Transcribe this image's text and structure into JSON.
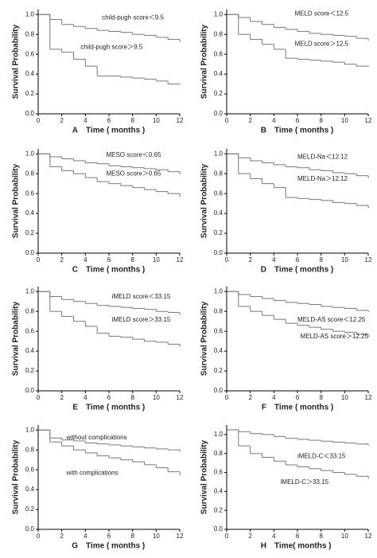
{
  "chart_data": [
    {
      "type": "step",
      "panel_label": "A",
      "xlabel": "Time ( months )",
      "ylabel": "Survival Probability",
      "x": [
        0,
        1,
        2,
        3,
        4,
        5,
        6,
        7,
        8,
        9,
        10,
        11,
        12
      ],
      "xlim": [
        0,
        12
      ],
      "ylim": [
        0,
        1.05
      ],
      "xticks": [
        0,
        2,
        4,
        6,
        8,
        10,
        12
      ],
      "yticks": [
        {
          "value": 0,
          "label": "0.0"
        },
        {
          "value": 0.2,
          "label": "0.2"
        },
        {
          "value": 0.4,
          "label": "0.4"
        },
        {
          "value": 0.6,
          "label": "0.6"
        },
        {
          "value": 0.8,
          "label": "0.8"
        },
        {
          "value": 1,
          "label": "1.0"
        }
      ],
      "series": [
        {
          "name": "child-pugh score＜9.5",
          "color": "#777777",
          "values": [
            1,
            0.95,
            0.9,
            0.88,
            0.86,
            0.84,
            0.83,
            0.82,
            0.8,
            0.79,
            0.77,
            0.75,
            0.73
          ]
        },
        {
          "name": "child-pugh score＞9.5",
          "color": "#777777",
          "values": [
            1,
            0.65,
            0.62,
            0.55,
            0.48,
            0.38,
            0.38,
            0.37,
            0.36,
            0.35,
            0.33,
            0.3,
            0.3
          ]
        }
      ]
    },
    {
      "type": "step",
      "panel_label": "B",
      "xlabel": "Time ( months )",
      "ylabel": "Survival Probability",
      "x": [
        0,
        1,
        2,
        3,
        4,
        5,
        6,
        7,
        8,
        9,
        10,
        11,
        12
      ],
      "xlim": [
        0,
        12
      ],
      "ylim": [
        0,
        1.05
      ],
      "xticks": [
        0,
        2,
        4,
        6,
        8,
        10,
        12
      ],
      "yticks": [
        {
          "value": 0,
          "label": "0.0"
        },
        {
          "value": 0.2,
          "label": "0.2"
        },
        {
          "value": 0.4,
          "label": "0.4"
        },
        {
          "value": 0.6,
          "label": "0.6"
        },
        {
          "value": 0.8,
          "label": "0.8"
        },
        {
          "value": 1,
          "label": "1.0"
        }
      ],
      "series": [
        {
          "name": "MELD score＜12.5",
          "color": "#777777",
          "values": [
            1,
            0.97,
            0.93,
            0.9,
            0.87,
            0.85,
            0.83,
            0.81,
            0.8,
            0.79,
            0.78,
            0.76,
            0.74
          ]
        },
        {
          "name": "MELD score＞12.5",
          "color": "#777777",
          "values": [
            1,
            0.8,
            0.75,
            0.7,
            0.65,
            0.56,
            0.55,
            0.54,
            0.53,
            0.52,
            0.5,
            0.48,
            0.48
          ]
        }
      ]
    },
    {
      "type": "step",
      "panel_label": "C",
      "xlabel": "Time ( months )",
      "ylabel": "Survival Probability",
      "x": [
        0,
        1,
        2,
        3,
        4,
        5,
        6,
        7,
        8,
        9,
        10,
        11,
        12
      ],
      "xlim": [
        0,
        12
      ],
      "ylim": [
        0,
        1.05
      ],
      "xticks": [
        0,
        2,
        4,
        6,
        8,
        10,
        12
      ],
      "yticks": [
        {
          "value": 0,
          "label": "0.0"
        },
        {
          "value": 0.2,
          "label": "0.2"
        },
        {
          "value": 0.4,
          "label": "0.4"
        },
        {
          "value": 0.6,
          "label": "0.6"
        },
        {
          "value": 0.8,
          "label": "0.8"
        },
        {
          "value": 1,
          "label": "1.0"
        }
      ],
      "series": [
        {
          "name": "MESO score＜0.65",
          "color": "#777777",
          "values": [
            1,
            0.97,
            0.95,
            0.93,
            0.91,
            0.9,
            0.88,
            0.87,
            0.86,
            0.85,
            0.84,
            0.82,
            0.8
          ]
        },
        {
          "name": "MESO score＞0.65",
          "color": "#777777",
          "values": [
            1,
            0.87,
            0.83,
            0.8,
            0.76,
            0.72,
            0.7,
            0.68,
            0.66,
            0.64,
            0.62,
            0.6,
            0.57
          ]
        }
      ]
    },
    {
      "type": "step",
      "panel_label": "D",
      "xlabel": "Time ( months )",
      "ylabel": "Survival Probability",
      "x": [
        0,
        1,
        2,
        3,
        4,
        5,
        6,
        7,
        8,
        9,
        10,
        11,
        12
      ],
      "xlim": [
        0,
        12
      ],
      "ylim": [
        0,
        1.05
      ],
      "xticks": [
        0,
        2,
        4,
        6,
        8,
        10,
        12
      ],
      "yticks": [
        {
          "value": 0,
          "label": "0.0"
        },
        {
          "value": 0.2,
          "label": "0.2"
        },
        {
          "value": 0.4,
          "label": "0.4"
        },
        {
          "value": 0.6,
          "label": "0.6"
        },
        {
          "value": 0.8,
          "label": "0.8"
        },
        {
          "value": 1,
          "label": "1.0"
        }
      ],
      "series": [
        {
          "name": "MELD-Na＜12.12",
          "color": "#777777",
          "values": [
            1,
            0.96,
            0.93,
            0.91,
            0.89,
            0.87,
            0.86,
            0.84,
            0.83,
            0.81,
            0.8,
            0.78,
            0.76
          ]
        },
        {
          "name": "MELD-Na＞12.12",
          "color": "#777777",
          "values": [
            1,
            0.8,
            0.75,
            0.7,
            0.66,
            0.56,
            0.55,
            0.54,
            0.53,
            0.51,
            0.5,
            0.48,
            0.46
          ]
        }
      ]
    },
    {
      "type": "step",
      "panel_label": "E",
      "xlabel": "Time ( months )",
      "ylabel": "Survival Probability",
      "x": [
        0,
        1,
        2,
        3,
        4,
        5,
        6,
        7,
        8,
        9,
        10,
        11,
        12
      ],
      "xlim": [
        0,
        12
      ],
      "ylim": [
        0,
        1.05
      ],
      "xticks": [
        0,
        2,
        4,
        6,
        8,
        10,
        12
      ],
      "yticks": [
        {
          "value": 0,
          "label": "0.0"
        },
        {
          "value": 0.2,
          "label": "0.2"
        },
        {
          "value": 0.4,
          "label": "0.4"
        },
        {
          "value": 0.6,
          "label": "0.6"
        },
        {
          "value": 0.8,
          "label": "0.8"
        },
        {
          "value": 1,
          "label": "1.0"
        }
      ],
      "series": [
        {
          "name": "iMELD score＜33.15",
          "color": "#777777",
          "values": [
            1,
            0.95,
            0.92,
            0.9,
            0.88,
            0.86,
            0.85,
            0.84,
            0.83,
            0.82,
            0.8,
            0.79,
            0.77
          ]
        },
        {
          "name": "iMELD score＞33.15",
          "color": "#777777",
          "values": [
            1,
            0.8,
            0.75,
            0.7,
            0.65,
            0.58,
            0.55,
            0.54,
            0.52,
            0.5,
            0.49,
            0.47,
            0.45
          ]
        }
      ]
    },
    {
      "type": "step",
      "panel_label": "F",
      "xlabel": "Time ( months )",
      "ylabel": "Survival Probability",
      "x": [
        0,
        1,
        2,
        3,
        4,
        5,
        6,
        7,
        8,
        9,
        10,
        11,
        12
      ],
      "xlim": [
        0,
        12
      ],
      "ylim": [
        0,
        1.05
      ],
      "xticks": [
        0,
        2,
        4,
        6,
        8,
        10,
        12
      ],
      "yticks": [
        {
          "value": 0,
          "label": "0.0"
        },
        {
          "value": 0.2,
          "label": "0.2"
        },
        {
          "value": 0.4,
          "label": "0.4"
        },
        {
          "value": 0.6,
          "label": "0.6"
        },
        {
          "value": 0.8,
          "label": "0.8"
        },
        {
          "value": 1,
          "label": "1.0"
        }
      ],
      "series": [
        {
          "name": "MELD-AS score＜12.25",
          "color": "#777777",
          "values": [
            1,
            0.97,
            0.95,
            0.93,
            0.91,
            0.89,
            0.88,
            0.87,
            0.85,
            0.84,
            0.83,
            0.81,
            0.8
          ]
        },
        {
          "name": "MELD-AS score＞12.25",
          "color": "#777777",
          "values": [
            1,
            0.85,
            0.8,
            0.76,
            0.72,
            0.68,
            0.66,
            0.64,
            0.62,
            0.6,
            0.59,
            0.57,
            0.55
          ]
        }
      ]
    },
    {
      "type": "step",
      "panel_label": "G",
      "xlabel": "Time ( months )",
      "ylabel": "Survival Probability",
      "x": [
        0,
        1,
        2,
        3,
        4,
        5,
        6,
        7,
        8,
        9,
        10,
        11,
        12
      ],
      "xlim": [
        0,
        12
      ],
      "ylim": [
        0,
        1.05
      ],
      "xticks": [
        0,
        2,
        4,
        6,
        8,
        10,
        12
      ],
      "yticks": [
        {
          "value": 0,
          "label": "0.0"
        },
        {
          "value": 0.2,
          "label": "0.2"
        },
        {
          "value": 0.4,
          "label": "0.4"
        },
        {
          "value": 0.6,
          "label": "0.6"
        },
        {
          "value": 0.8,
          "label": "0.8"
        },
        {
          "value": 1,
          "label": "1.0"
        }
      ],
      "series": [
        {
          "name": "without complications",
          "color": "#777777",
          "values": [
            1,
            0.92,
            0.9,
            0.89,
            0.87,
            0.86,
            0.85,
            0.84,
            0.83,
            0.82,
            0.81,
            0.8,
            0.79
          ]
        },
        {
          "name": "with complications",
          "color": "#777777",
          "values": [
            1,
            0.88,
            0.84,
            0.8,
            0.77,
            0.74,
            0.72,
            0.7,
            0.68,
            0.65,
            0.62,
            0.58,
            0.55
          ]
        }
      ]
    },
    {
      "type": "step",
      "panel_label": "H",
      "xlabel": "Time( months )",
      "ylabel": "Survival Probability",
      "x": [
        0,
        1,
        2,
        3,
        4,
        5,
        6,
        7,
        8,
        9,
        10,
        11,
        12
      ],
      "xlim": [
        0,
        12
      ],
      "ylim": [
        0,
        1.1
      ],
      "xticks": [
        0,
        2,
        4,
        6,
        8,
        10,
        12
      ],
      "yticks": [
        {
          "value": 0,
          "label": "0.0"
        },
        {
          "value": 0.2,
          "label": "0.2"
        },
        {
          "value": 0.4,
          "label": "0.4"
        },
        {
          "value": 0.6,
          "label": "0.6"
        },
        {
          "value": 0.8,
          "label": "0.8"
        },
        {
          "value": 1,
          "label": "1.0"
        }
      ],
      "series": [
        {
          "name": "iMELD-C＜33.15",
          "color": "#777777",
          "values": [
            1.05,
            1.03,
            1.01,
            1,
            0.98,
            0.96,
            0.95,
            0.94,
            0.93,
            0.92,
            0.91,
            0.9,
            0.89
          ]
        },
        {
          "name": "iMELD-C＞33.15",
          "color": "#777777",
          "values": [
            1.05,
            0.88,
            0.8,
            0.76,
            0.72,
            0.68,
            0.66,
            0.64,
            0.62,
            0.6,
            0.58,
            0.56,
            0.54
          ]
        }
      ]
    }
  ]
}
